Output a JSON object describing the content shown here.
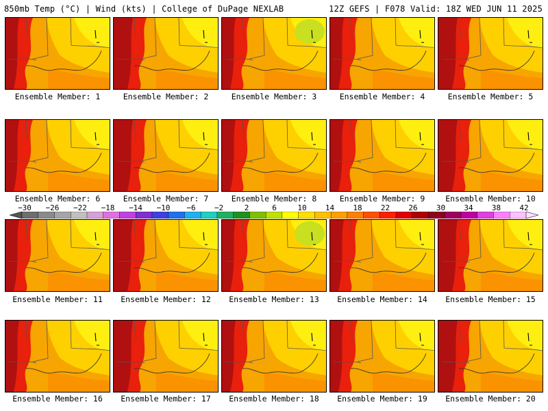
{
  "header": {
    "left": "850mb Temp (°C) | Wind (kts) | College of DuPage NEXLAB",
    "right": "12Z GEFS | F078 Valid: 18Z WED JUN 11 2025"
  },
  "members": [
    "Ensemble Member: 1",
    "Ensemble Member: 2",
    "Ensemble Member: 3",
    "Ensemble Member: 4",
    "Ensemble Member: 5",
    "Ensemble Member: 6",
    "Ensemble Member: 7",
    "Ensemble Member: 8",
    "Ensemble Member: 9",
    "Ensemble Member: 10",
    "Ensemble Member: 11",
    "Ensemble Member: 12",
    "Ensemble Member: 13",
    "Ensemble Member: 14",
    "Ensemble Member: 15",
    "Ensemble Member: 16",
    "Ensemble Member: 17",
    "Ensemble Member: 18",
    "Ensemble Member: 19",
    "Ensemble Member: 20"
  ],
  "colorbar": {
    "labels": [
      "−30",
      "−26",
      "−22",
      "−18",
      "−14",
      "−10",
      "−6",
      "−2",
      "2",
      "6",
      "10",
      "14",
      "18",
      "22",
      "26",
      "30",
      "34",
      "38",
      "42"
    ],
    "colors": [
      "#6e6e6e",
      "#8a8a8a",
      "#a6a6a6",
      "#c0c0c0",
      "#d8a0d8",
      "#e070e0",
      "#c040e0",
      "#8030d0",
      "#4040e0",
      "#2070f0",
      "#20b0f0",
      "#20d0c0",
      "#20b060",
      "#209020",
      "#80c000",
      "#c0e000",
      "#ffff00",
      "#ffe000",
      "#ffc000",
      "#ffa000",
      "#ff8000",
      "#ff5000",
      "#ff2000",
      "#e00000",
      "#b00000",
      "#900020",
      "#a00060",
      "#c000a0",
      "#e040e0",
      "#ff80ff",
      "#ffc0ff"
    ]
  }
}
